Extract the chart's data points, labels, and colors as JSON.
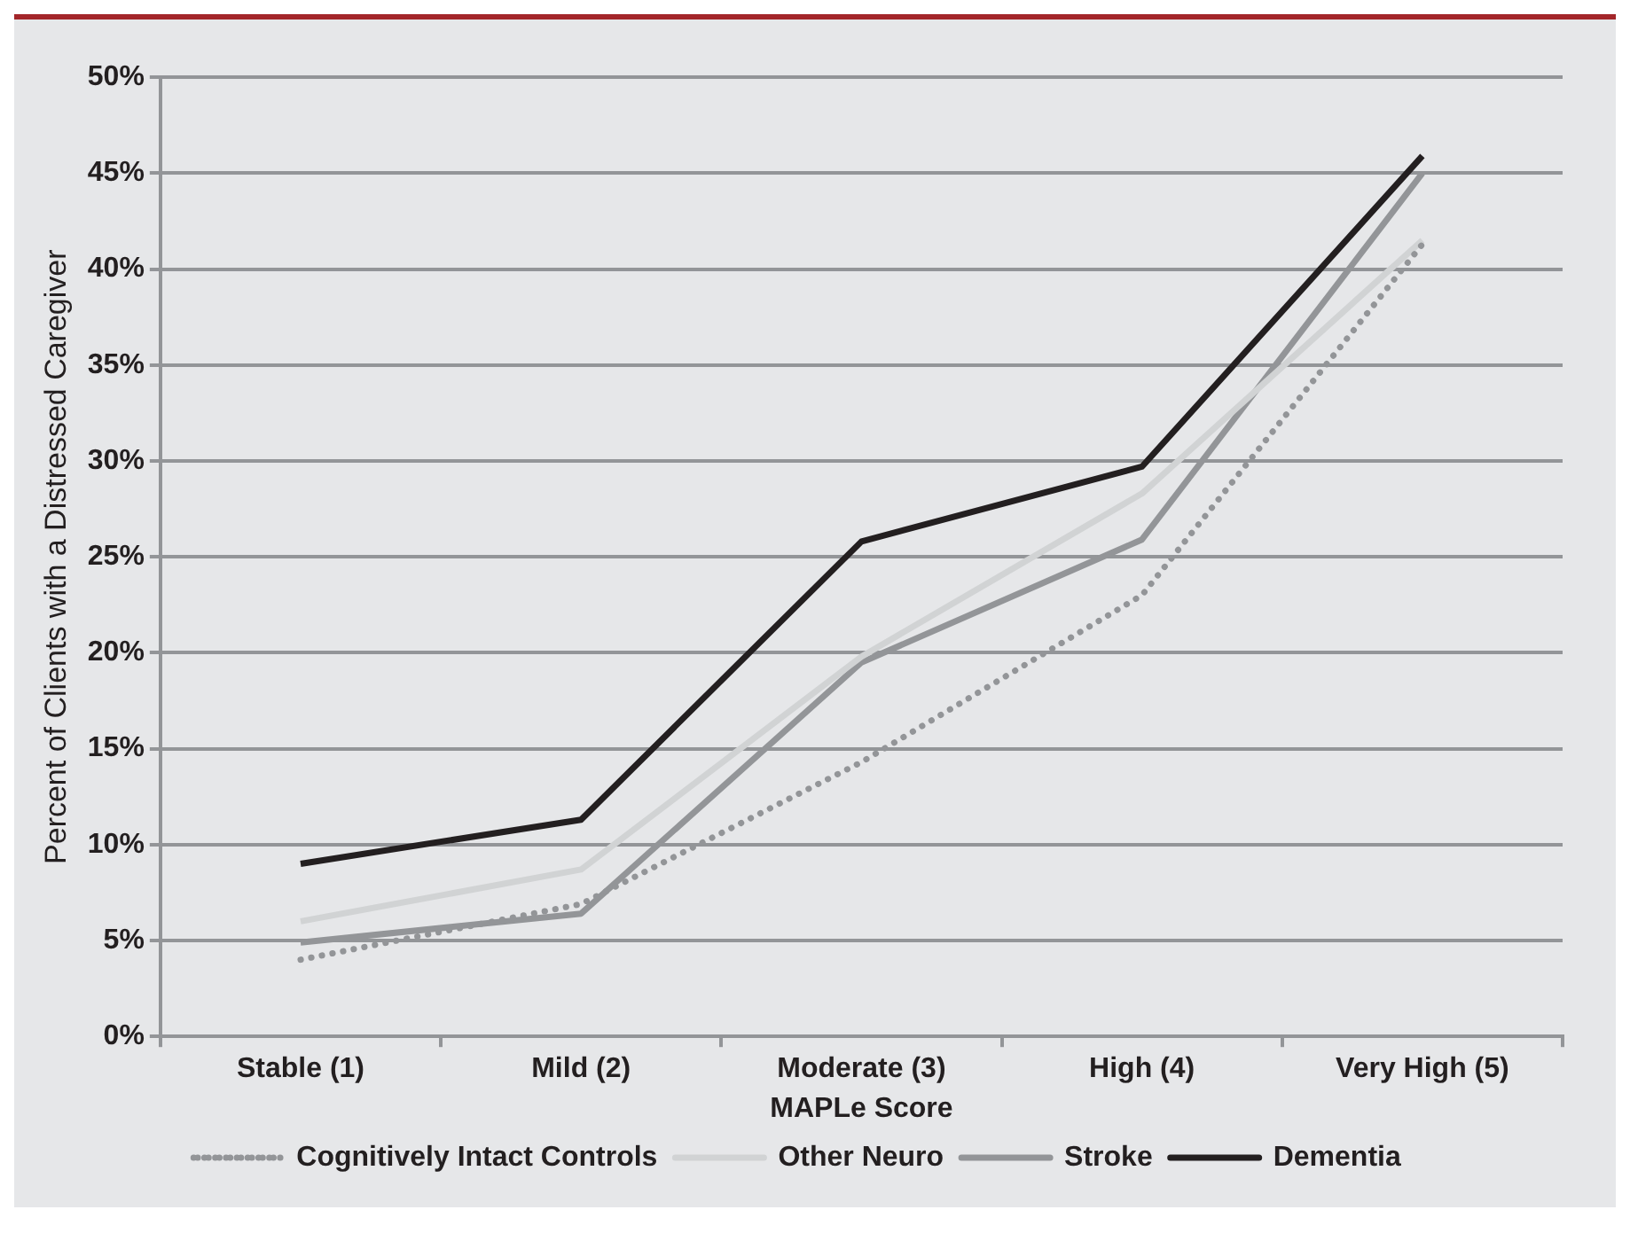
{
  "chart_data": {
    "type": "line",
    "xlabel": "MAPLe Score",
    "ylabel": "Percent of Clients with a Distressed Caregiver",
    "categories": [
      "Stable (1)",
      "Mild (2)",
      "Moderate (3)",
      "High (4)",
      "Very High (5)"
    ],
    "series": [
      {
        "name": "Cognitively Intact Controls",
        "color": "#939598",
        "line_style": "dotted",
        "values": [
          4,
          6.9,
          14.3,
          23,
          41.3
        ]
      },
      {
        "name": "Other Neuro",
        "color": "#d1d3d4",
        "values": [
          6,
          8.7,
          19.8,
          28.3,
          41.5
        ]
      },
      {
        "name": "Stroke",
        "color": "#939598",
        "values": [
          4.9,
          6.4,
          19.5,
          25.9,
          45
        ]
      },
      {
        "name": "Dementia",
        "color": "#231f20",
        "values": [
          9,
          11.3,
          25.8,
          29.7,
          45.9
        ]
      }
    ],
    "ylim": [
      0,
      50
    ],
    "yticks": [
      {
        "value": 0,
        "label": "0%"
      },
      {
        "value": 5,
        "label": "5%"
      },
      {
        "value": 10,
        "label": "10%"
      },
      {
        "value": 15,
        "label": "15%"
      },
      {
        "value": 20,
        "label": "20%"
      },
      {
        "value": 25,
        "label": "25%"
      },
      {
        "value": 30,
        "label": "30%"
      },
      {
        "value": 35,
        "label": "35%"
      },
      {
        "value": 40,
        "label": "40%"
      },
      {
        "value": 45,
        "label": "45%"
      },
      {
        "value": 50,
        "label": "50%"
      }
    ],
    "grid": "y",
    "legend": "bottom",
    "marker": "none",
    "line_style": "solid"
  }
}
